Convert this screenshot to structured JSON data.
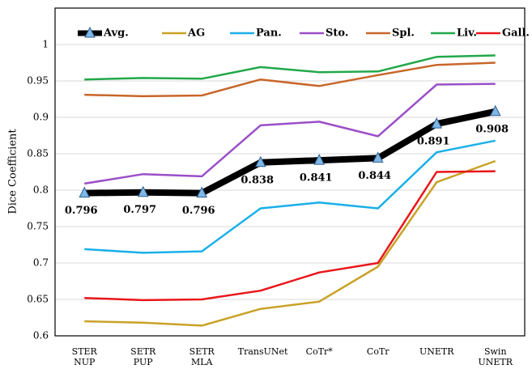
{
  "chart_data": {
    "type": "line",
    "ylabel": "Dice Coefficient",
    "categories": [
      "STER NUP",
      "SETR PUP",
      "SETR MLA",
      "TransUNet",
      "CoTr*",
      "CoTr",
      "UNETR",
      "Swin UNETR"
    ],
    "series": [
      {
        "name": "Avg.",
        "color": "#000000",
        "values": [
          0.796,
          0.797,
          0.796,
          0.838,
          0.841,
          0.844,
          0.891,
          0.908
        ]
      },
      {
        "name": "AG",
        "color": "#c9a227",
        "values": [
          0.62,
          0.618,
          0.614,
          0.637,
          0.647,
          0.695,
          0.811,
          0.84
        ]
      },
      {
        "name": "Pan.",
        "color": "#1ab0e8",
        "values": [
          0.719,
          0.714,
          0.716,
          0.775,
          0.783,
          0.775,
          0.852,
          0.868
        ]
      },
      {
        "name": "Sto.",
        "color": "#9b4fc8",
        "values": [
          0.809,
          0.822,
          0.819,
          0.889,
          0.894,
          0.874,
          0.945,
          0.946
        ]
      },
      {
        "name": "Spl.",
        "color": "#c8662a",
        "values": [
          0.931,
          0.929,
          0.93,
          0.952,
          0.943,
          0.958,
          0.972,
          0.975
        ]
      },
      {
        "name": "Liv.",
        "color": "#22a84a",
        "values": [
          0.952,
          0.954,
          0.953,
          0.969,
          0.962,
          0.963,
          0.983,
          0.985
        ]
      },
      {
        "name": "Gall.",
        "color": "#e8161b",
        "values": [
          0.652,
          0.649,
          0.65,
          0.662,
          0.687,
          0.7,
          0.825,
          0.826
        ]
      }
    ],
    "ylim": [
      0.6,
      1.05
    ],
    "yticks": [
      0.6,
      0.65,
      0.7,
      0.75,
      0.8,
      0.85,
      0.9,
      0.95,
      1
    ],
    "grid": true
  }
}
